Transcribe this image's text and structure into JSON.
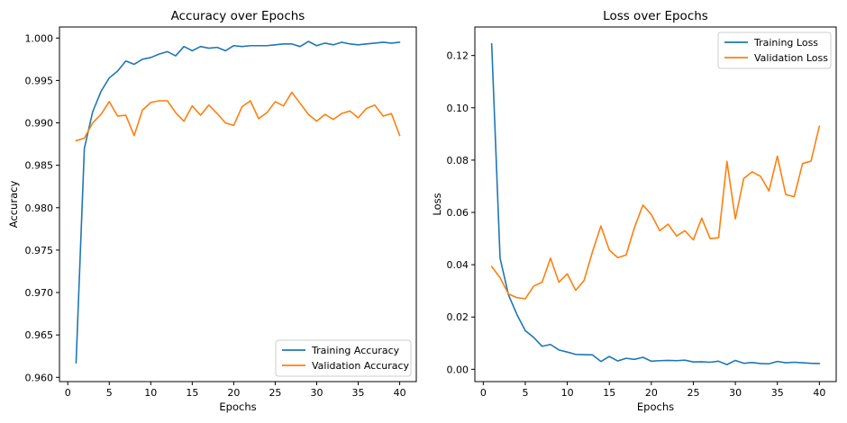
{
  "chart_data": [
    {
      "type": "line",
      "title": "Accuracy over Epochs",
      "xlabel": "Epochs",
      "ylabel": "Accuracy",
      "xlim": [
        -1,
        42
      ],
      "ylim": [
        0.9595,
        1.0013
      ],
      "xticks": [
        0,
        5,
        10,
        15,
        20,
        25,
        30,
        35,
        40
      ],
      "xtick_labels": [
        "0",
        "5",
        "10",
        "15",
        "20",
        "25",
        "30",
        "35",
        "40"
      ],
      "yticks": [
        0.96,
        0.965,
        0.97,
        0.975,
        0.98,
        0.985,
        0.99,
        0.995,
        1.0
      ],
      "ytick_labels": [
        "0.960",
        "0.965",
        "0.970",
        "0.975",
        "0.980",
        "0.985",
        "0.990",
        "0.995",
        "1.000"
      ],
      "grid": false,
      "legend_position": "lower-right",
      "x": [
        1,
        2,
        3,
        4,
        5,
        6,
        7,
        8,
        9,
        10,
        11,
        12,
        13,
        14,
        15,
        16,
        17,
        18,
        19,
        20,
        21,
        22,
        23,
        24,
        25,
        26,
        27,
        28,
        29,
        30,
        31,
        32,
        33,
        34,
        35,
        36,
        37,
        38,
        39,
        40
      ],
      "series": [
        {
          "name": "Training Accuracy",
          "color": "#1f77b4",
          "values": [
            0.9617,
            0.987,
            0.9913,
            0.9937,
            0.9953,
            0.9961,
            0.9973,
            0.9969,
            0.9975,
            0.9977,
            0.9981,
            0.9984,
            0.9979,
            0.999,
            0.9985,
            0.999,
            0.9988,
            0.9989,
            0.9985,
            0.9991,
            0.999,
            0.9991,
            0.9991,
            0.9991,
            0.9992,
            0.9993,
            0.9993,
            0.999,
            0.9996,
            0.9991,
            0.9994,
            0.9992,
            0.9995,
            0.9993,
            0.9992,
            0.9993,
            0.9994,
            0.9995,
            0.9994,
            0.9995
          ]
        },
        {
          "name": "Validation Accuracy",
          "color": "#ff7f0e",
          "values": [
            0.9879,
            0.9882,
            0.99,
            0.991,
            0.9925,
            0.9908,
            0.9909,
            0.9885,
            0.9915,
            0.9924,
            0.9926,
            0.9926,
            0.9912,
            0.9902,
            0.992,
            0.9909,
            0.9921,
            0.9911,
            0.99,
            0.9897,
            0.9919,
            0.9926,
            0.9905,
            0.9912,
            0.9925,
            0.992,
            0.9936,
            0.9923,
            0.991,
            0.9902,
            0.991,
            0.9904,
            0.9911,
            0.9914,
            0.9906,
            0.9917,
            0.9921,
            0.9908,
            0.9911,
            0.9885
          ]
        }
      ]
    },
    {
      "type": "line",
      "title": "Loss over Epochs",
      "xlabel": "Epochs",
      "ylabel": "Loss",
      "xlim": [
        -1,
        42
      ],
      "ylim": [
        -0.0047,
        0.1309
      ],
      "xticks": [
        0,
        5,
        10,
        15,
        20,
        25,
        30,
        35,
        40
      ],
      "xtick_labels": [
        "0",
        "5",
        "10",
        "15",
        "20",
        "25",
        "30",
        "35",
        "40"
      ],
      "yticks": [
        0.0,
        0.02,
        0.04,
        0.06,
        0.08,
        0.1,
        0.12
      ],
      "ytick_labels": [
        "0.00",
        "0.02",
        "0.04",
        "0.06",
        "0.08",
        "0.10",
        "0.12"
      ],
      "grid": false,
      "legend_position": "upper-right",
      "x": [
        1,
        2,
        3,
        4,
        5,
        6,
        7,
        8,
        9,
        10,
        11,
        12,
        13,
        14,
        15,
        16,
        17,
        18,
        19,
        20,
        21,
        22,
        23,
        24,
        25,
        26,
        27,
        28,
        29,
        30,
        31,
        32,
        33,
        34,
        35,
        36,
        37,
        38,
        39,
        40
      ],
      "series": [
        {
          "name": "Training Loss",
          "color": "#1f77b4",
          "values": [
            0.1245,
            0.0425,
            0.0285,
            0.021,
            0.0148,
            0.0122,
            0.0088,
            0.0095,
            0.0074,
            0.0066,
            0.0057,
            0.0056,
            0.0055,
            0.003,
            0.0049,
            0.0032,
            0.0042,
            0.0038,
            0.0046,
            0.0031,
            0.0033,
            0.0034,
            0.0033,
            0.0035,
            0.0028,
            0.0029,
            0.0027,
            0.0031,
            0.0018,
            0.0034,
            0.0023,
            0.0026,
            0.0022,
            0.0021,
            0.003,
            0.0025,
            0.0027,
            0.0025,
            0.0023,
            0.0022
          ]
        },
        {
          "name": "Validation Loss",
          "color": "#ff7f0e",
          "values": [
            0.0393,
            0.035,
            0.0288,
            0.0274,
            0.027,
            0.0318,
            0.0333,
            0.0425,
            0.0333,
            0.0365,
            0.0302,
            0.034,
            0.045,
            0.0548,
            0.0456,
            0.0427,
            0.0437,
            0.0543,
            0.0628,
            0.0592,
            0.053,
            0.0555,
            0.051,
            0.053,
            0.0495,
            0.0578,
            0.05,
            0.0503,
            0.0795,
            0.0575,
            0.073,
            0.0755,
            0.0738,
            0.0682,
            0.0815,
            0.0668,
            0.066,
            0.0787,
            0.0796,
            0.093
          ]
        }
      ]
    }
  ]
}
